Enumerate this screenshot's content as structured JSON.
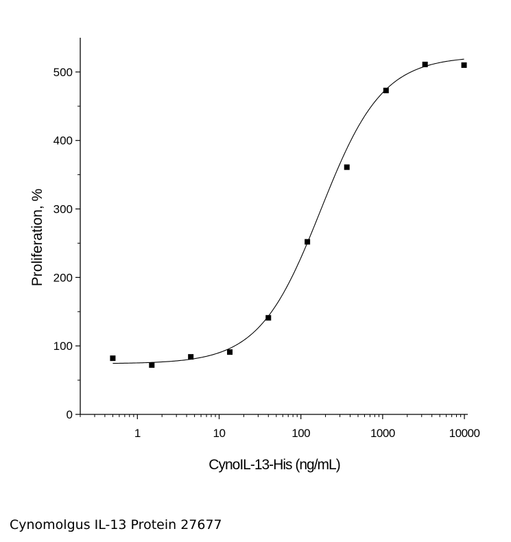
{
  "caption": "Cynomolgus IL-13 Protein 27677",
  "chart_data": {
    "type": "scatter",
    "xscale": "log",
    "xlabel": "CynoIL-13-His (ng/mL)",
    "ylabel": "Proliferation, %",
    "ylim": [
      0,
      550
    ],
    "xlim": [
      0.2,
      11000
    ],
    "xticks": [
      1,
      10,
      100,
      1000,
      10000
    ],
    "xtick_labels": [
      "1",
      "10",
      "100",
      "1000",
      "10000"
    ],
    "yticks": [
      0,
      100,
      200,
      300,
      400,
      500
    ],
    "ytick_labels": [
      "0",
      "100",
      "200",
      "300",
      "400",
      "500"
    ],
    "grid": false,
    "marker": "square",
    "color": "#000000",
    "points": [
      {
        "x": 0.5,
        "y": 82
      },
      {
        "x": 1.5,
        "y": 72
      },
      {
        "x": 4.5,
        "y": 84
      },
      {
        "x": 13.5,
        "y": 91
      },
      {
        "x": 40,
        "y": 141
      },
      {
        "x": 120,
        "y": 252
      },
      {
        "x": 365,
        "y": 361
      },
      {
        "x": 1100,
        "y": 473
      },
      {
        "x": 3300,
        "y": 511
      },
      {
        "x": 9900,
        "y": 510
      }
    ],
    "fit": {
      "model": "4PL",
      "bottom": 74,
      "top": 523,
      "ec50": 175,
      "hill": 1.15
    }
  }
}
